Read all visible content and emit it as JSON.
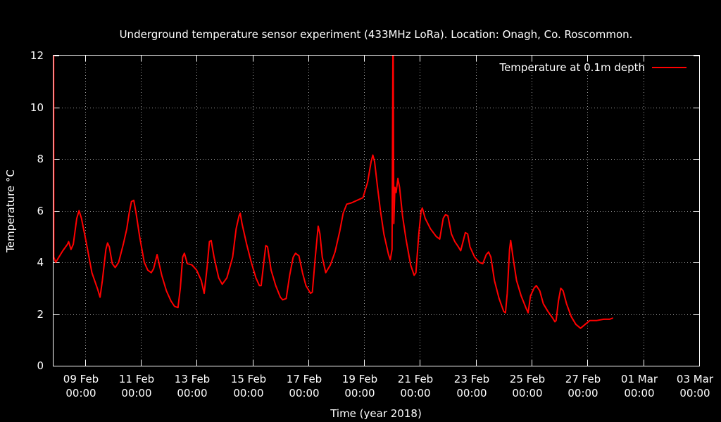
{
  "chart_data": {
    "type": "line",
    "title": "Underground temperature sensor experiment (433MHz LoRa). Location: Onagh, Co. Roscommon.",
    "xlabel": "Time (year 2018)",
    "ylabel": "Temperature °C",
    "ylim": [
      0,
      12
    ],
    "xlim": [
      "2018-02-07 21:00",
      "2018-03-03 00:00"
    ],
    "yticks": [
      0,
      2,
      4,
      6,
      8,
      10,
      12
    ],
    "xticks": [
      {
        "date": "2018-02-09 00:00",
        "label1": "09 Feb",
        "label2": "00:00"
      },
      {
        "date": "2018-02-11 00:00",
        "label1": "11 Feb",
        "label2": "00:00"
      },
      {
        "date": "2018-02-13 00:00",
        "label1": "13 Feb",
        "label2": "00:00"
      },
      {
        "date": "2018-02-15 00:00",
        "label1": "15 Feb",
        "label2": "00:00"
      },
      {
        "date": "2018-02-17 00:00",
        "label1": "17 Feb",
        "label2": "00:00"
      },
      {
        "date": "2018-02-19 00:00",
        "label1": "19 Feb",
        "label2": "00:00"
      },
      {
        "date": "2018-02-21 00:00",
        "label1": "21 Feb",
        "label2": "00:00"
      },
      {
        "date": "2018-02-23 00:00",
        "label1": "23 Feb",
        "label2": "00:00"
      },
      {
        "date": "2018-02-25 00:00",
        "label1": "25 Feb",
        "label2": "00:00"
      },
      {
        "date": "2018-02-27 00:00",
        "label1": "27 Feb",
        "label2": "00:00"
      },
      {
        "date": "2018-03-01 00:00",
        "label1": "01 Mar",
        "label2": "00:00"
      },
      {
        "date": "2018-03-03 00:00",
        "label1": "03 Mar",
        "label2": "00:00"
      }
    ],
    "grid": true,
    "legend_position": "top-right",
    "series": [
      {
        "name": "Temperature at 0.1m depth",
        "color": "#ff0000",
        "points": [
          [
            "2018-02-07 21:07",
            12.0
          ],
          [
            "2018-02-07 21:14",
            4.2
          ],
          [
            "2018-02-07 22:52",
            4.0
          ],
          [
            "2018-02-08 05:00",
            4.45
          ],
          [
            "2018-02-08 09:00",
            4.7
          ],
          [
            "2018-02-08 10:00",
            4.8
          ],
          [
            "2018-02-08 12:00",
            4.5
          ],
          [
            "2018-02-08 14:00",
            4.7
          ],
          [
            "2018-02-08 17:00",
            5.7
          ],
          [
            "2018-02-08 19:00",
            6.0
          ],
          [
            "2018-02-08 21:00",
            5.7
          ],
          [
            "2018-02-09 01:00",
            4.8
          ],
          [
            "2018-02-09 06:00",
            3.6
          ],
          [
            "2018-02-09 11:00",
            2.95
          ],
          [
            "2018-02-09 13:00",
            2.65
          ],
          [
            "2018-02-09 15:00",
            3.3
          ],
          [
            "2018-02-09 18:00",
            4.5
          ],
          [
            "2018-02-09 19:30",
            4.75
          ],
          [
            "2018-02-09 21:00",
            4.6
          ],
          [
            "2018-02-09 23:30",
            3.95
          ],
          [
            "2018-02-10 02:00",
            3.8
          ],
          [
            "2018-02-10 05:00",
            4.0
          ],
          [
            "2018-02-10 09:00",
            4.7
          ],
          [
            "2018-02-10 12:00",
            5.3
          ],
          [
            "2018-02-10 14:00",
            5.9
          ],
          [
            "2018-02-10 16:00",
            6.35
          ],
          [
            "2018-02-10 18:00",
            6.4
          ],
          [
            "2018-02-10 20:00",
            5.9
          ],
          [
            "2018-02-10 23:00",
            5.0
          ],
          [
            "2018-02-11 03:00",
            4.0
          ],
          [
            "2018-02-11 06:00",
            3.7
          ],
          [
            "2018-02-11 09:00",
            3.6
          ],
          [
            "2018-02-11 11:00",
            3.75
          ],
          [
            "2018-02-11 14:00",
            4.3
          ],
          [
            "2018-02-11 18:00",
            3.5
          ],
          [
            "2018-02-11 22:00",
            2.9
          ],
          [
            "2018-02-12 02:00",
            2.5
          ],
          [
            "2018-02-12 05:00",
            2.3
          ],
          [
            "2018-02-12 08:00",
            2.25
          ],
          [
            "2018-02-12 10:00",
            3.0
          ],
          [
            "2018-02-12 12:00",
            4.2
          ],
          [
            "2018-02-12 13:30",
            4.35
          ],
          [
            "2018-02-12 16:00",
            3.95
          ],
          [
            "2018-02-12 20:00",
            3.9
          ],
          [
            "2018-02-13 00:00",
            3.7
          ],
          [
            "2018-02-13 04:00",
            3.3
          ],
          [
            "2018-02-13 06:30",
            2.8
          ],
          [
            "2018-02-13 09:00",
            3.8
          ],
          [
            "2018-02-13 11:00",
            4.8
          ],
          [
            "2018-02-13 12:30",
            4.85
          ],
          [
            "2018-02-13 15:00",
            4.2
          ],
          [
            "2018-02-13 19:00",
            3.4
          ],
          [
            "2018-02-13 22:00",
            3.15
          ],
          [
            "2018-02-14 02:00",
            3.4
          ],
          [
            "2018-02-14 07:00",
            4.2
          ],
          [
            "2018-02-14 10:00",
            5.3
          ],
          [
            "2018-02-14 12:30",
            5.8
          ],
          [
            "2018-02-14 13:30",
            5.9
          ],
          [
            "2018-02-14 15:00",
            5.5
          ],
          [
            "2018-02-14 19:00",
            4.7
          ],
          [
            "2018-02-14 23:00",
            4.0
          ],
          [
            "2018-02-15 03:00",
            3.4
          ],
          [
            "2018-02-15 06:00",
            3.1
          ],
          [
            "2018-02-15 07:30",
            3.1
          ],
          [
            "2018-02-15 10:00",
            4.1
          ],
          [
            "2018-02-15 11:30",
            4.65
          ],
          [
            "2018-02-15 13:00",
            4.6
          ],
          [
            "2018-02-15 16:00",
            3.7
          ],
          [
            "2018-02-15 20:00",
            3.1
          ],
          [
            "2018-02-16 00:00",
            2.65
          ],
          [
            "2018-02-16 02:00",
            2.55
          ],
          [
            "2018-02-16 05:00",
            2.6
          ],
          [
            "2018-02-16 08:00",
            3.5
          ],
          [
            "2018-02-16 11:00",
            4.2
          ],
          [
            "2018-02-16 13:00",
            4.35
          ],
          [
            "2018-02-16 16:00",
            4.25
          ],
          [
            "2018-02-16 19:00",
            3.6
          ],
          [
            "2018-02-16 22:00",
            3.1
          ],
          [
            "2018-02-17 02:00",
            2.8
          ],
          [
            "2018-02-17 03:30",
            2.85
          ],
          [
            "2018-02-17 06:00",
            4.2
          ],
          [
            "2018-02-17 08:30",
            5.4
          ],
          [
            "2018-02-17 10:00",
            5.1
          ],
          [
            "2018-02-17 12:00",
            4.2
          ],
          [
            "2018-02-17 15:00",
            3.6
          ],
          [
            "2018-02-17 19:00",
            3.9
          ],
          [
            "2018-02-17 23:00",
            4.4
          ],
          [
            "2018-02-18 03:00",
            5.2
          ],
          [
            "2018-02-18 06:00",
            5.9
          ],
          [
            "2018-02-18 09:00",
            6.25
          ],
          [
            "2018-02-18 13:00",
            6.3
          ],
          [
            "2018-02-18 18:00",
            6.4
          ],
          [
            "2018-02-18 23:00",
            6.5
          ],
          [
            "2018-02-19 03:00",
            7.1
          ],
          [
            "2018-02-19 06:00",
            7.9
          ],
          [
            "2018-02-19 07:30",
            8.15
          ],
          [
            "2018-02-19 09:00",
            7.9
          ],
          [
            "2018-02-19 11:30",
            6.9
          ],
          [
            "2018-02-19 14:00",
            6.0
          ],
          [
            "2018-02-19 17:00",
            5.1
          ],
          [
            "2018-02-19 21:00",
            4.3
          ],
          [
            "2018-02-19 22:30",
            4.1
          ],
          [
            "2018-02-20 00:00",
            4.5
          ],
          [
            "2018-02-20 00:45",
            12.0
          ],
          [
            "2018-02-20 01:00",
            12.0
          ],
          [
            "2018-02-20 01:30",
            5.5
          ],
          [
            "2018-02-20 02:30",
            6.9
          ],
          [
            "2018-02-20 03:30",
            6.7
          ],
          [
            "2018-02-20 05:00",
            7.25
          ],
          [
            "2018-02-20 06:30",
            6.9
          ],
          [
            "2018-02-20 09:00",
            5.8
          ],
          [
            "2018-02-20 12:00",
            4.9
          ],
          [
            "2018-02-20 16:00",
            3.9
          ],
          [
            "2018-02-20 19:00",
            3.5
          ],
          [
            "2018-02-20 20:30",
            3.6
          ],
          [
            "2018-02-20 23:00",
            5.1
          ],
          [
            "2018-02-21 01:00",
            6.0
          ],
          [
            "2018-02-21 02:00",
            6.1
          ],
          [
            "2018-02-21 04:30",
            5.7
          ],
          [
            "2018-02-21 09:00",
            5.3
          ],
          [
            "2018-02-21 14:00",
            5.0
          ],
          [
            "2018-02-21 17:00",
            4.9
          ],
          [
            "2018-02-21 20:00",
            5.7
          ],
          [
            "2018-02-21 22:00",
            5.85
          ],
          [
            "2018-02-22 00:00",
            5.8
          ],
          [
            "2018-02-22 03:00",
            5.1
          ],
          [
            "2018-02-22 06:00",
            4.8
          ],
          [
            "2018-02-22 09:00",
            4.6
          ],
          [
            "2018-02-22 11:00",
            4.45
          ],
          [
            "2018-02-22 13:00",
            4.8
          ],
          [
            "2018-02-22 15:00",
            5.15
          ],
          [
            "2018-02-22 17:00",
            5.1
          ],
          [
            "2018-02-22 19:00",
            4.6
          ],
          [
            "2018-02-22 23:00",
            4.2
          ],
          [
            "2018-02-23 03:00",
            4.0
          ],
          [
            "2018-02-23 06:00",
            3.95
          ],
          [
            "2018-02-23 09:00",
            4.3
          ],
          [
            "2018-02-23 11:00",
            4.4
          ],
          [
            "2018-02-23 13:00",
            4.2
          ],
          [
            "2018-02-23 16:00",
            3.3
          ],
          [
            "2018-02-23 20:00",
            2.6
          ],
          [
            "2018-02-24 00:00",
            2.1
          ],
          [
            "2018-02-24 01:30",
            2.05
          ],
          [
            "2018-02-24 03:00",
            2.8
          ],
          [
            "2018-02-24 05:00",
            4.5
          ],
          [
            "2018-02-24 06:00",
            4.85
          ],
          [
            "2018-02-24 08:00",
            4.2
          ],
          [
            "2018-02-24 11:00",
            3.3
          ],
          [
            "2018-02-24 15:00",
            2.7
          ],
          [
            "2018-02-24 19:00",
            2.25
          ],
          [
            "2018-02-24 21:00",
            2.05
          ],
          [
            "2018-02-24 23:00",
            2.7
          ],
          [
            "2018-02-25 02:00",
            3.0
          ],
          [
            "2018-02-25 04:00",
            3.1
          ],
          [
            "2018-02-25 07:00",
            2.9
          ],
          [
            "2018-02-25 10:00",
            2.4
          ],
          [
            "2018-02-25 14:00",
            2.1
          ],
          [
            "2018-02-25 18:00",
            1.85
          ],
          [
            "2018-02-25 20:00",
            1.7
          ],
          [
            "2018-02-25 21:00",
            1.75
          ],
          [
            "2018-02-25 23:00",
            2.5
          ],
          [
            "2018-02-26 01:00",
            3.0
          ],
          [
            "2018-02-26 03:00",
            2.9
          ],
          [
            "2018-02-26 06:00",
            2.4
          ],
          [
            "2018-02-26 10:00",
            1.9
          ],
          [
            "2018-02-26 14:00",
            1.6
          ],
          [
            "2018-02-26 18:00",
            1.45
          ],
          [
            "2018-02-26 22:00",
            1.6
          ],
          [
            "2018-02-27 02:00",
            1.75
          ],
          [
            "2018-02-27 08:00",
            1.75
          ],
          [
            "2018-02-27 14:00",
            1.8
          ],
          [
            "2018-02-27 19:00",
            1.8
          ],
          [
            "2018-02-27 22:00",
            1.85
          ]
        ]
      }
    ]
  }
}
